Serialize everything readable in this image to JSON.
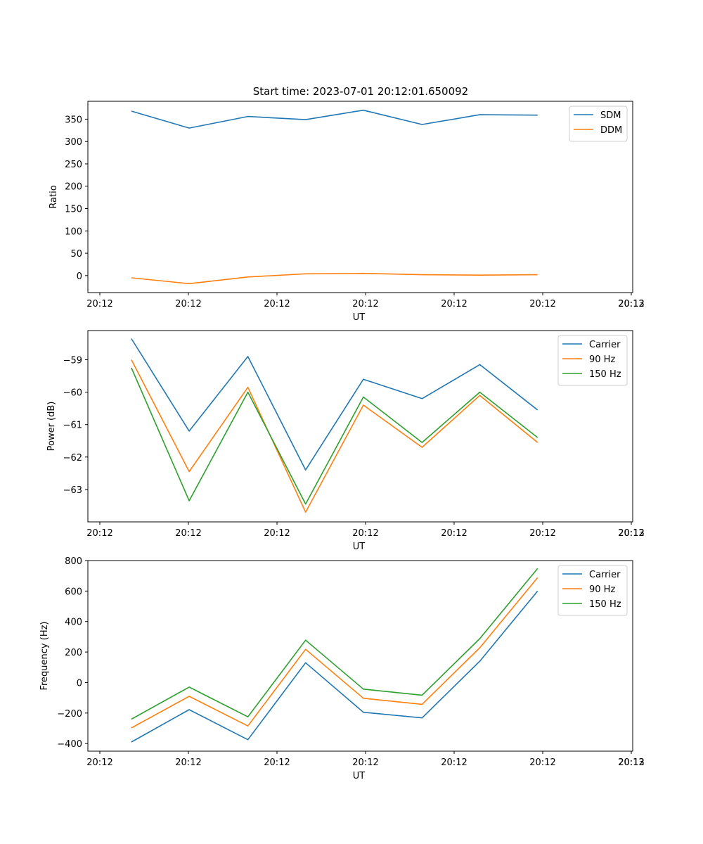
{
  "figure": {
    "title": "Start time: 2023-07-01 20:12:01.650092"
  },
  "colors": {
    "blue": "#1f77b4",
    "orange": "#ff7f0e",
    "green": "#2ca02c"
  },
  "chart_data": [
    {
      "type": "line",
      "title": "Start time: 2023-07-01 20:12:01.650092",
      "xlabel": "UT",
      "ylabel": "Ratio",
      "x_ticks": [
        "20:12",
        "20:12",
        "20:12",
        "20:12",
        "20:12",
        "20:12",
        "20:12",
        "20:13"
      ],
      "xlim": [
        0,
        6.13
      ],
      "y_ticks": [
        0,
        50,
        100,
        150,
        200,
        250,
        300,
        350
      ],
      "ylim": [
        -38,
        390
      ],
      "legend_position": "upper right",
      "x": [
        0.49,
        1.14,
        1.8,
        2.45,
        3.1,
        3.76,
        4.41,
        5.06
      ],
      "series": [
        {
          "name": "SDM",
          "color": "#1f77b4",
          "values": [
            368,
            330,
            356,
            349,
            370,
            338,
            360,
            359
          ]
        },
        {
          "name": "DDM",
          "color": "#ff7f0e",
          "values": [
            -5,
            -18,
            -3,
            4,
            5,
            2,
            1,
            2
          ]
        }
      ]
    },
    {
      "type": "line",
      "title": "",
      "xlabel": "UT",
      "ylabel": "Power (dB)",
      "x_ticks": [
        "20:12",
        "20:12",
        "20:12",
        "20:12",
        "20:12",
        "20:12",
        "20:12",
        "20:13"
      ],
      "xlim": [
        0,
        6.13
      ],
      "y_ticks": [
        -63,
        -62,
        -61,
        -60,
        -59
      ],
      "ylim": [
        -64.0,
        -58.1
      ],
      "legend_position": "upper right",
      "x": [
        0.49,
        1.14,
        1.8,
        2.45,
        3.1,
        3.76,
        4.41,
        5.06
      ],
      "series": [
        {
          "name": "Carrier",
          "color": "#1f77b4",
          "values": [
            -58.35,
            -61.2,
            -58.9,
            -62.4,
            -59.6,
            -60.2,
            -59.15,
            -60.55
          ]
        },
        {
          "name": "90 Hz",
          "color": "#ff7f0e",
          "values": [
            -59.0,
            -62.45,
            -59.85,
            -63.7,
            -60.4,
            -61.7,
            -60.1,
            -61.55
          ]
        },
        {
          "name": "150 Hz",
          "color": "#2ca02c",
          "values": [
            -59.25,
            -63.35,
            -60.0,
            -63.45,
            -60.15,
            -61.55,
            -60.0,
            -61.4
          ]
        }
      ]
    },
    {
      "type": "line",
      "title": "",
      "xlabel": "UT",
      "ylabel": "Frequency (Hz)",
      "x_ticks": [
        "20:12",
        "20:12",
        "20:12",
        "20:12",
        "20:12",
        "20:12",
        "20:12",
        "20:13"
      ],
      "xlim": [
        0,
        6.13
      ],
      "y_ticks": [
        -400,
        -200,
        0,
        200,
        400,
        600,
        800
      ],
      "ylim": [
        -450,
        800
      ],
      "legend_position": "upper right",
      "x": [
        0.49,
        1.14,
        1.8,
        2.45,
        3.1,
        3.76,
        4.41,
        5.06
      ],
      "series": [
        {
          "name": "Carrier",
          "color": "#1f77b4",
          "values": [
            -390,
            -178,
            -375,
            130,
            -195,
            -232,
            140,
            600
          ]
        },
        {
          "name": "90 Hz",
          "color": "#ff7f0e",
          "values": [
            -298,
            -90,
            -285,
            218,
            -103,
            -143,
            228,
            688
          ]
        },
        {
          "name": "150 Hz",
          "color": "#2ca02c",
          "values": [
            -240,
            -30,
            -225,
            278,
            -43,
            -83,
            288,
            748
          ]
        }
      ]
    }
  ]
}
